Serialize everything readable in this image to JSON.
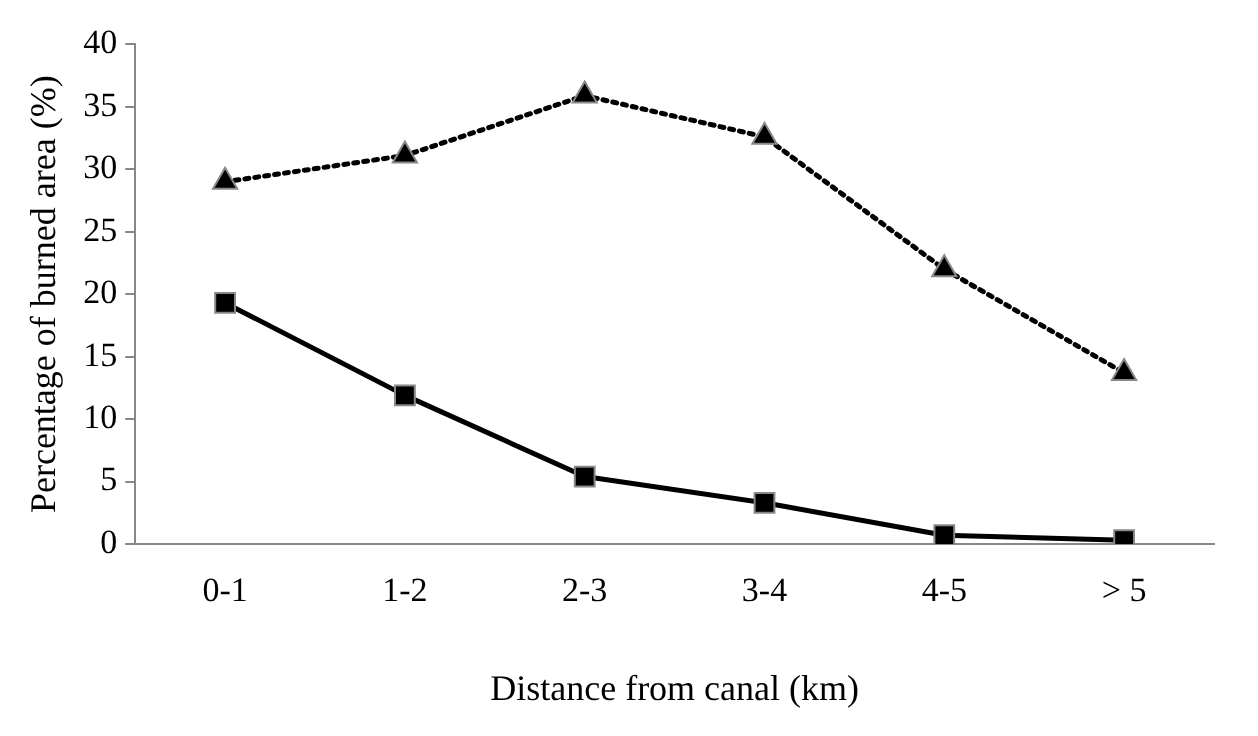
{
  "chart_data": {
    "type": "line",
    "xlabel": "Distance from canal (km)",
    "ylabel": "Percentage of burned area (%)",
    "categories": [
      "0-1",
      "1-2",
      "2-3",
      "3-4",
      "4-5",
      "> 5"
    ],
    "series": [
      {
        "color": "#000000",
        "marker": "triangle",
        "line_style": "dotted",
        "values": [
          29.0,
          31.1,
          35.9,
          32.6,
          22.0,
          13.7
        ]
      },
      {
        "color": "#000000",
        "marker": "square",
        "line_style": "solid",
        "values": [
          19.3,
          11.9,
          5.4,
          3.3,
          0.7,
          0.3
        ]
      }
    ],
    "ylim": [
      0,
      40
    ],
    "yticks": [
      0,
      5,
      10,
      15,
      20,
      25,
      30,
      35,
      40
    ],
    "grid": false,
    "legend": false
  }
}
